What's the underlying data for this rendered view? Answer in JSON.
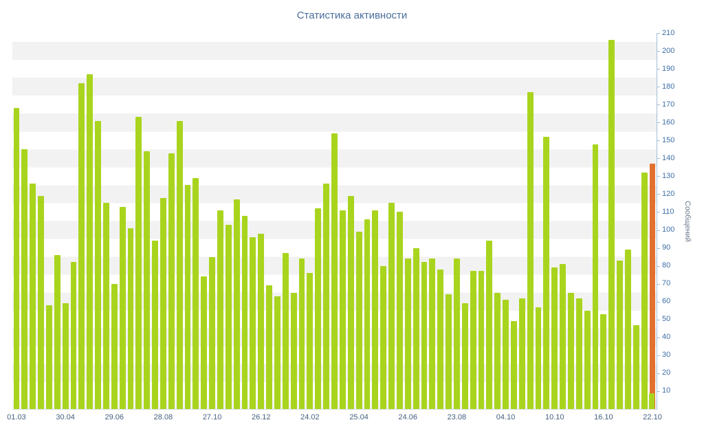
{
  "title": "Статистика активности",
  "chart_data": {
    "type": "bar",
    "title": "Статистика активности",
    "xlabel": "",
    "ylabel": "Сообщений",
    "ylim": [
      0,
      210
    ],
    "ytick_step": 10,
    "grid": "striped-horizontal-bands",
    "legend": "none",
    "x_label_every_n_bars": 6,
    "x_tick_labels": [
      "01.03",
      "30.04",
      "29.06",
      "28.08",
      "27.10",
      "26.12",
      "24.02",
      "25.04",
      "24.06",
      "23.08",
      "04.10",
      "10.10",
      "16.10",
      "22.10"
    ],
    "values": [
      168,
      145,
      126,
      119,
      58,
      86,
      59,
      82,
      182,
      187,
      161,
      115,
      70,
      113,
      101,
      163,
      144,
      94,
      118,
      143,
      161,
      125,
      129,
      74,
      85,
      111,
      103,
      117,
      108,
      96,
      98,
      69,
      63,
      87,
      65,
      84,
      76,
      112,
      126,
      154,
      111,
      119,
      99,
      106,
      111,
      80,
      115,
      110,
      84,
      90,
      82,
      84,
      78,
      64,
      84,
      59,
      77,
      77,
      94,
      65,
      61,
      49,
      62,
      177,
      57,
      152,
      79,
      81,
      65,
      62,
      55,
      148,
      53,
      206,
      83,
      89,
      47,
      132,
      137
    ],
    "highlight": {
      "index": 78,
      "value": 137,
      "overlay_value": 9
    },
    "colors": {
      "bar": "#a9d41e",
      "highlight": "#e2712f",
      "overlay": "#a9d41e",
      "title": "#4a6e9e",
      "y_tick": "#3e6fa8",
      "x_tick": "#45607f",
      "axis_line": "#a3bdd4",
      "stripe": "#f2f2f2",
      "ylabel": "#6b7b8d"
    }
  }
}
